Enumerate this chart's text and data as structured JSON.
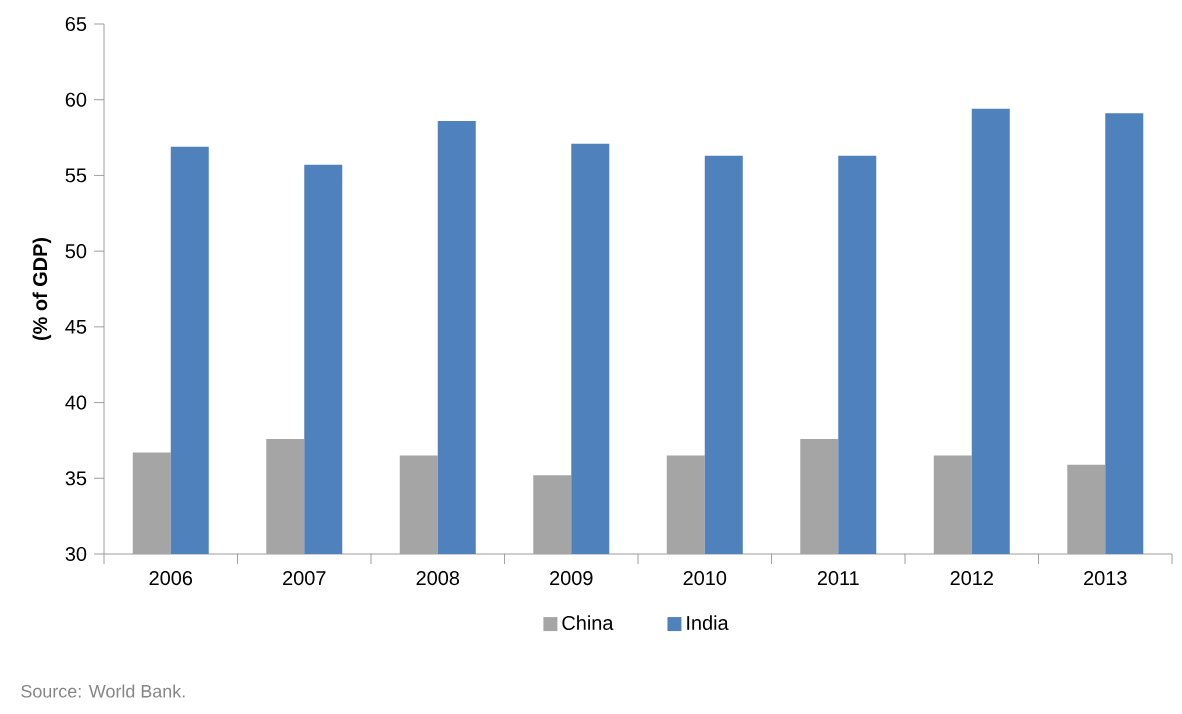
{
  "chart_data": {
    "type": "bar",
    "ylabel": "(% of GDP)",
    "categories": [
      "2006",
      "2007",
      "2008",
      "2009",
      "2010",
      "2011",
      "2012",
      "2013"
    ],
    "series": [
      {
        "name": "China",
        "color": "#a5a5a5",
        "values": [
          36.7,
          37.6,
          36.5,
          35.2,
          36.5,
          37.6,
          36.5,
          35.9
        ]
      },
      {
        "name": "India",
        "color": "#4f81bd",
        "values": [
          56.9,
          55.7,
          58.6,
          57.1,
          56.3,
          56.3,
          59.4,
          59.1
        ]
      }
    ],
    "ylim": [
      30,
      65
    ],
    "yticks": [
      30,
      35,
      40,
      45,
      50,
      55,
      60,
      65
    ],
    "legend": "bottom",
    "annotations": [
      "Source: World Bank."
    ]
  }
}
